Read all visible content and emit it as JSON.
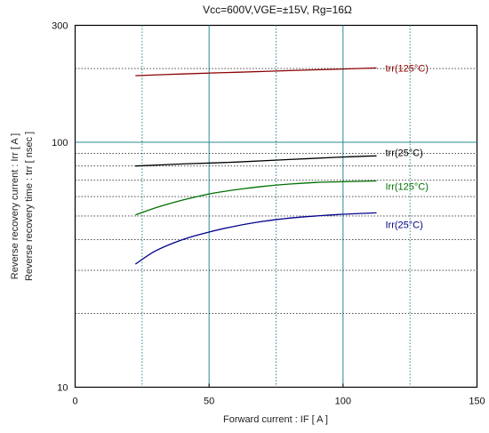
{
  "chart_data": {
    "type": "line",
    "title": "Vcc=600V,VGE=±15V, Rg=16Ω",
    "xlabel": "Forward current  :  IF  [ A ]",
    "ylabel_line1": "Reverse recovery current  :  Irr  [ A ]",
    "ylabel_line2": "Reverse recovery time  :  trr  [ nsec ]",
    "xlim": [
      0,
      150
    ],
    "ylim": [
      10,
      300
    ],
    "yscale": "log",
    "grid": true,
    "x_ticks": [
      "0",
      "50",
      "100",
      "150"
    ],
    "y_ticks": [
      "10",
      "100",
      "300"
    ],
    "series": [
      {
        "name": "trr(125°C)",
        "color": "#8b0000",
        "x": [
          22.5,
          40,
          60,
          80,
          100,
          112.5
        ],
        "y": [
          187,
          190,
          193,
          196,
          199,
          201
        ]
      },
      {
        "name": "trr(25°C)",
        "color": "#000000",
        "x": [
          22.5,
          40,
          60,
          80,
          100,
          112.5
        ],
        "y": [
          80,
          81.5,
          83,
          85,
          87,
          88
        ]
      },
      {
        "name": "Irr(125°C)",
        "color": "#007000",
        "x": [
          22.5,
          30,
          40,
          50,
          60,
          70,
          80,
          90,
          100,
          112.5
        ],
        "y": [
          50.5,
          54,
          58,
          61.5,
          64,
          66,
          67.5,
          68.5,
          69,
          69.5
        ]
      },
      {
        "name": "Irr(25°C)",
        "color": "#00008b",
        "x": [
          22.5,
          30,
          40,
          50,
          60,
          70,
          80,
          90,
          100,
          112.5
        ],
        "y": [
          31.8,
          36,
          40,
          43,
          45.5,
          47.5,
          49,
          50,
          50.8,
          51.5
        ]
      }
    ]
  }
}
